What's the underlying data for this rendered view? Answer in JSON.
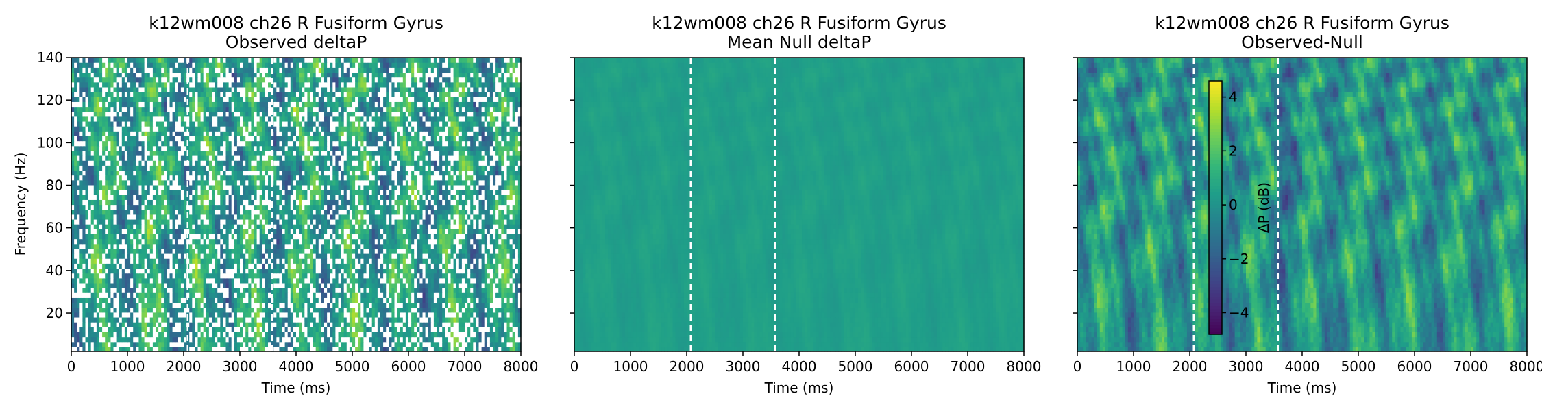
{
  "chart_data": [
    {
      "type": "heatmap",
      "title": "k12wm008 ch26 R Fusiform Gyrus",
      "subtitle": "Observed deltaP",
      "xlabel": "Time (ms)",
      "ylabel": "Frequency (Hz)",
      "xlim": [
        0,
        8000
      ],
      "ylim": [
        2,
        140
      ],
      "xticks": [
        "0",
        "1000",
        "2000",
        "3000",
        "4000",
        "5000",
        "6000",
        "7000",
        "8000"
      ],
      "yticks": [
        "20",
        "40",
        "60",
        "80",
        "100",
        "120",
        "140"
      ],
      "event_lines_ms": [
        2070,
        3570
      ],
      "colormap": "viridis",
      "masked_cells_color": "#ffffff"
    },
    {
      "type": "heatmap",
      "title": "k12wm008 ch26 R Fusiform Gyrus",
      "subtitle": "Mean Null deltaP",
      "xlabel": "Time (ms)",
      "xlim": [
        0,
        8000
      ],
      "ylim": [
        2,
        140
      ],
      "xticks": [
        "0",
        "1000",
        "2000",
        "3000",
        "4000",
        "5000",
        "6000",
        "7000",
        "8000"
      ],
      "event_lines_ms": [
        2070,
        3570
      ],
      "colormap": "viridis"
    },
    {
      "type": "heatmap",
      "title": "k12wm008 ch26 R Fusiform Gyrus",
      "subtitle": "Observed-Null",
      "xlabel": "Time (ms)",
      "xlim": [
        0,
        8000
      ],
      "ylim": [
        2,
        140
      ],
      "xticks": [
        "0",
        "1000",
        "2000",
        "3000",
        "4000",
        "5000",
        "6000",
        "7000",
        "8000"
      ],
      "event_lines_ms": [
        2070,
        3570
      ],
      "colormap": "viridis",
      "colorbar": {
        "label": "ΔP (dB)",
        "range": [
          -4.8,
          4.6
        ],
        "ticks": [
          -4,
          -2,
          0,
          2,
          4
        ],
        "tick_labels": [
          "−4",
          "−2",
          "0",
          "2",
          "4"
        ]
      }
    }
  ],
  "colors": {
    "viridis": [
      "#440154",
      "#482878",
      "#3e4989",
      "#31688e",
      "#26828e",
      "#1f9e89",
      "#35b779",
      "#6ece58",
      "#b5de2b",
      "#fde725"
    ],
    "event_line": "#ffffff",
    "axes": "#000000"
  }
}
